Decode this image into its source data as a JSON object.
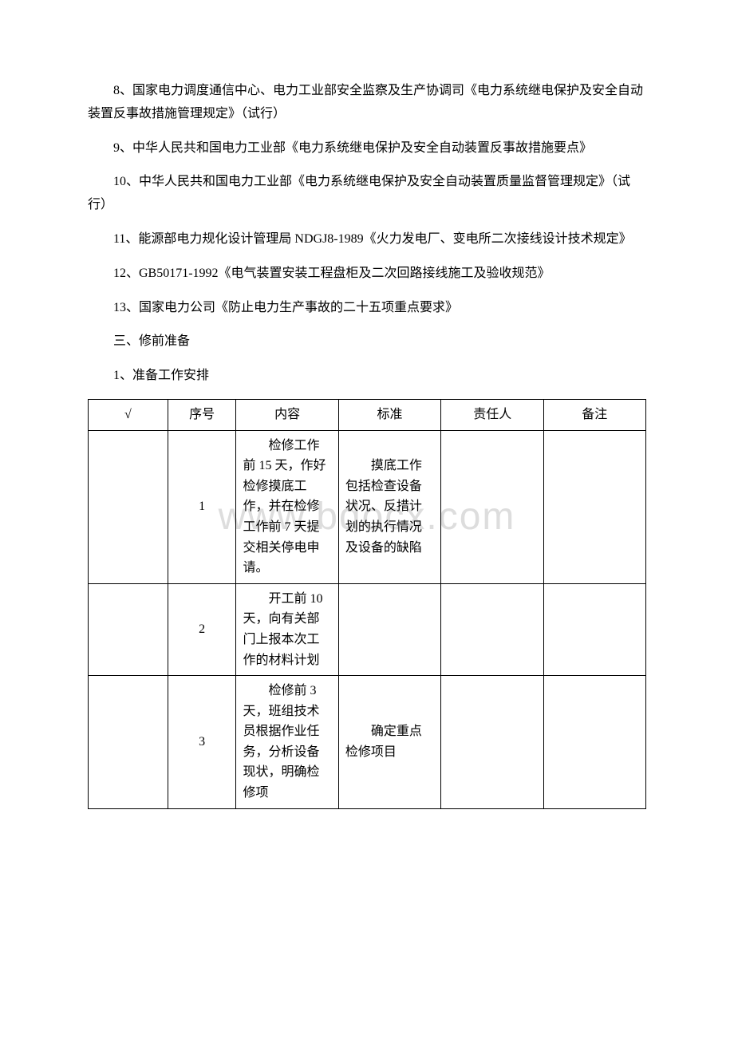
{
  "watermark": "www.bdocx.com",
  "paragraphs": {
    "p1": "8、国家电力调度通信中心、电力工业部安全监察及生产协调司《电力系统继电保护及安全自动装置反事故措施管理规定》（试行）",
    "p2": "9、中华人民共和国电力工业部《电力系统继电保护及安全自动装置反事故措施要点》",
    "p3": "10、中华人民共和国电力工业部《电力系统继电保护及安全自动装置质量监督管理规定》（试行）",
    "p4": "11、能源部电力规化设计管理局 NDGJ8-1989《火力发电厂、变电所二次接线设计技术规定》",
    "p5": "12、GB50171-1992《电气装置安装工程盘柜及二次回路接线施工及验收规范》",
    "p6": "13、国家电力公司《防止电力生产事故的二十五项重点要求》",
    "p7": "三、修前准备",
    "p8": "1、准备工作安排"
  },
  "table": {
    "headers": {
      "check": "√",
      "seq": "序号",
      "content": "内容",
      "standard": "标准",
      "person": "责任人",
      "remark": "备注"
    },
    "rows": [
      {
        "check": "",
        "seq": "1",
        "content": "检修工作前 15 天，作好检修摸底工作，并在检修工作前 7 天提交相关停电申请。",
        "standard": "摸底工作包括检查设备状况、反措计划的执行情况及设备的缺陷",
        "person": "",
        "remark": ""
      },
      {
        "check": "",
        "seq": "2",
        "content": "开工前 10 天，向有关部门上报本次工作的材料计划",
        "standard": "",
        "person": "",
        "remark": ""
      },
      {
        "check": "",
        "seq": "3",
        "content": "检修前 3 天，班组技术员根据作业任务，分析设备现状，明确检修项",
        "standard": "确定重点检修项目",
        "person": "",
        "remark": ""
      }
    ]
  }
}
